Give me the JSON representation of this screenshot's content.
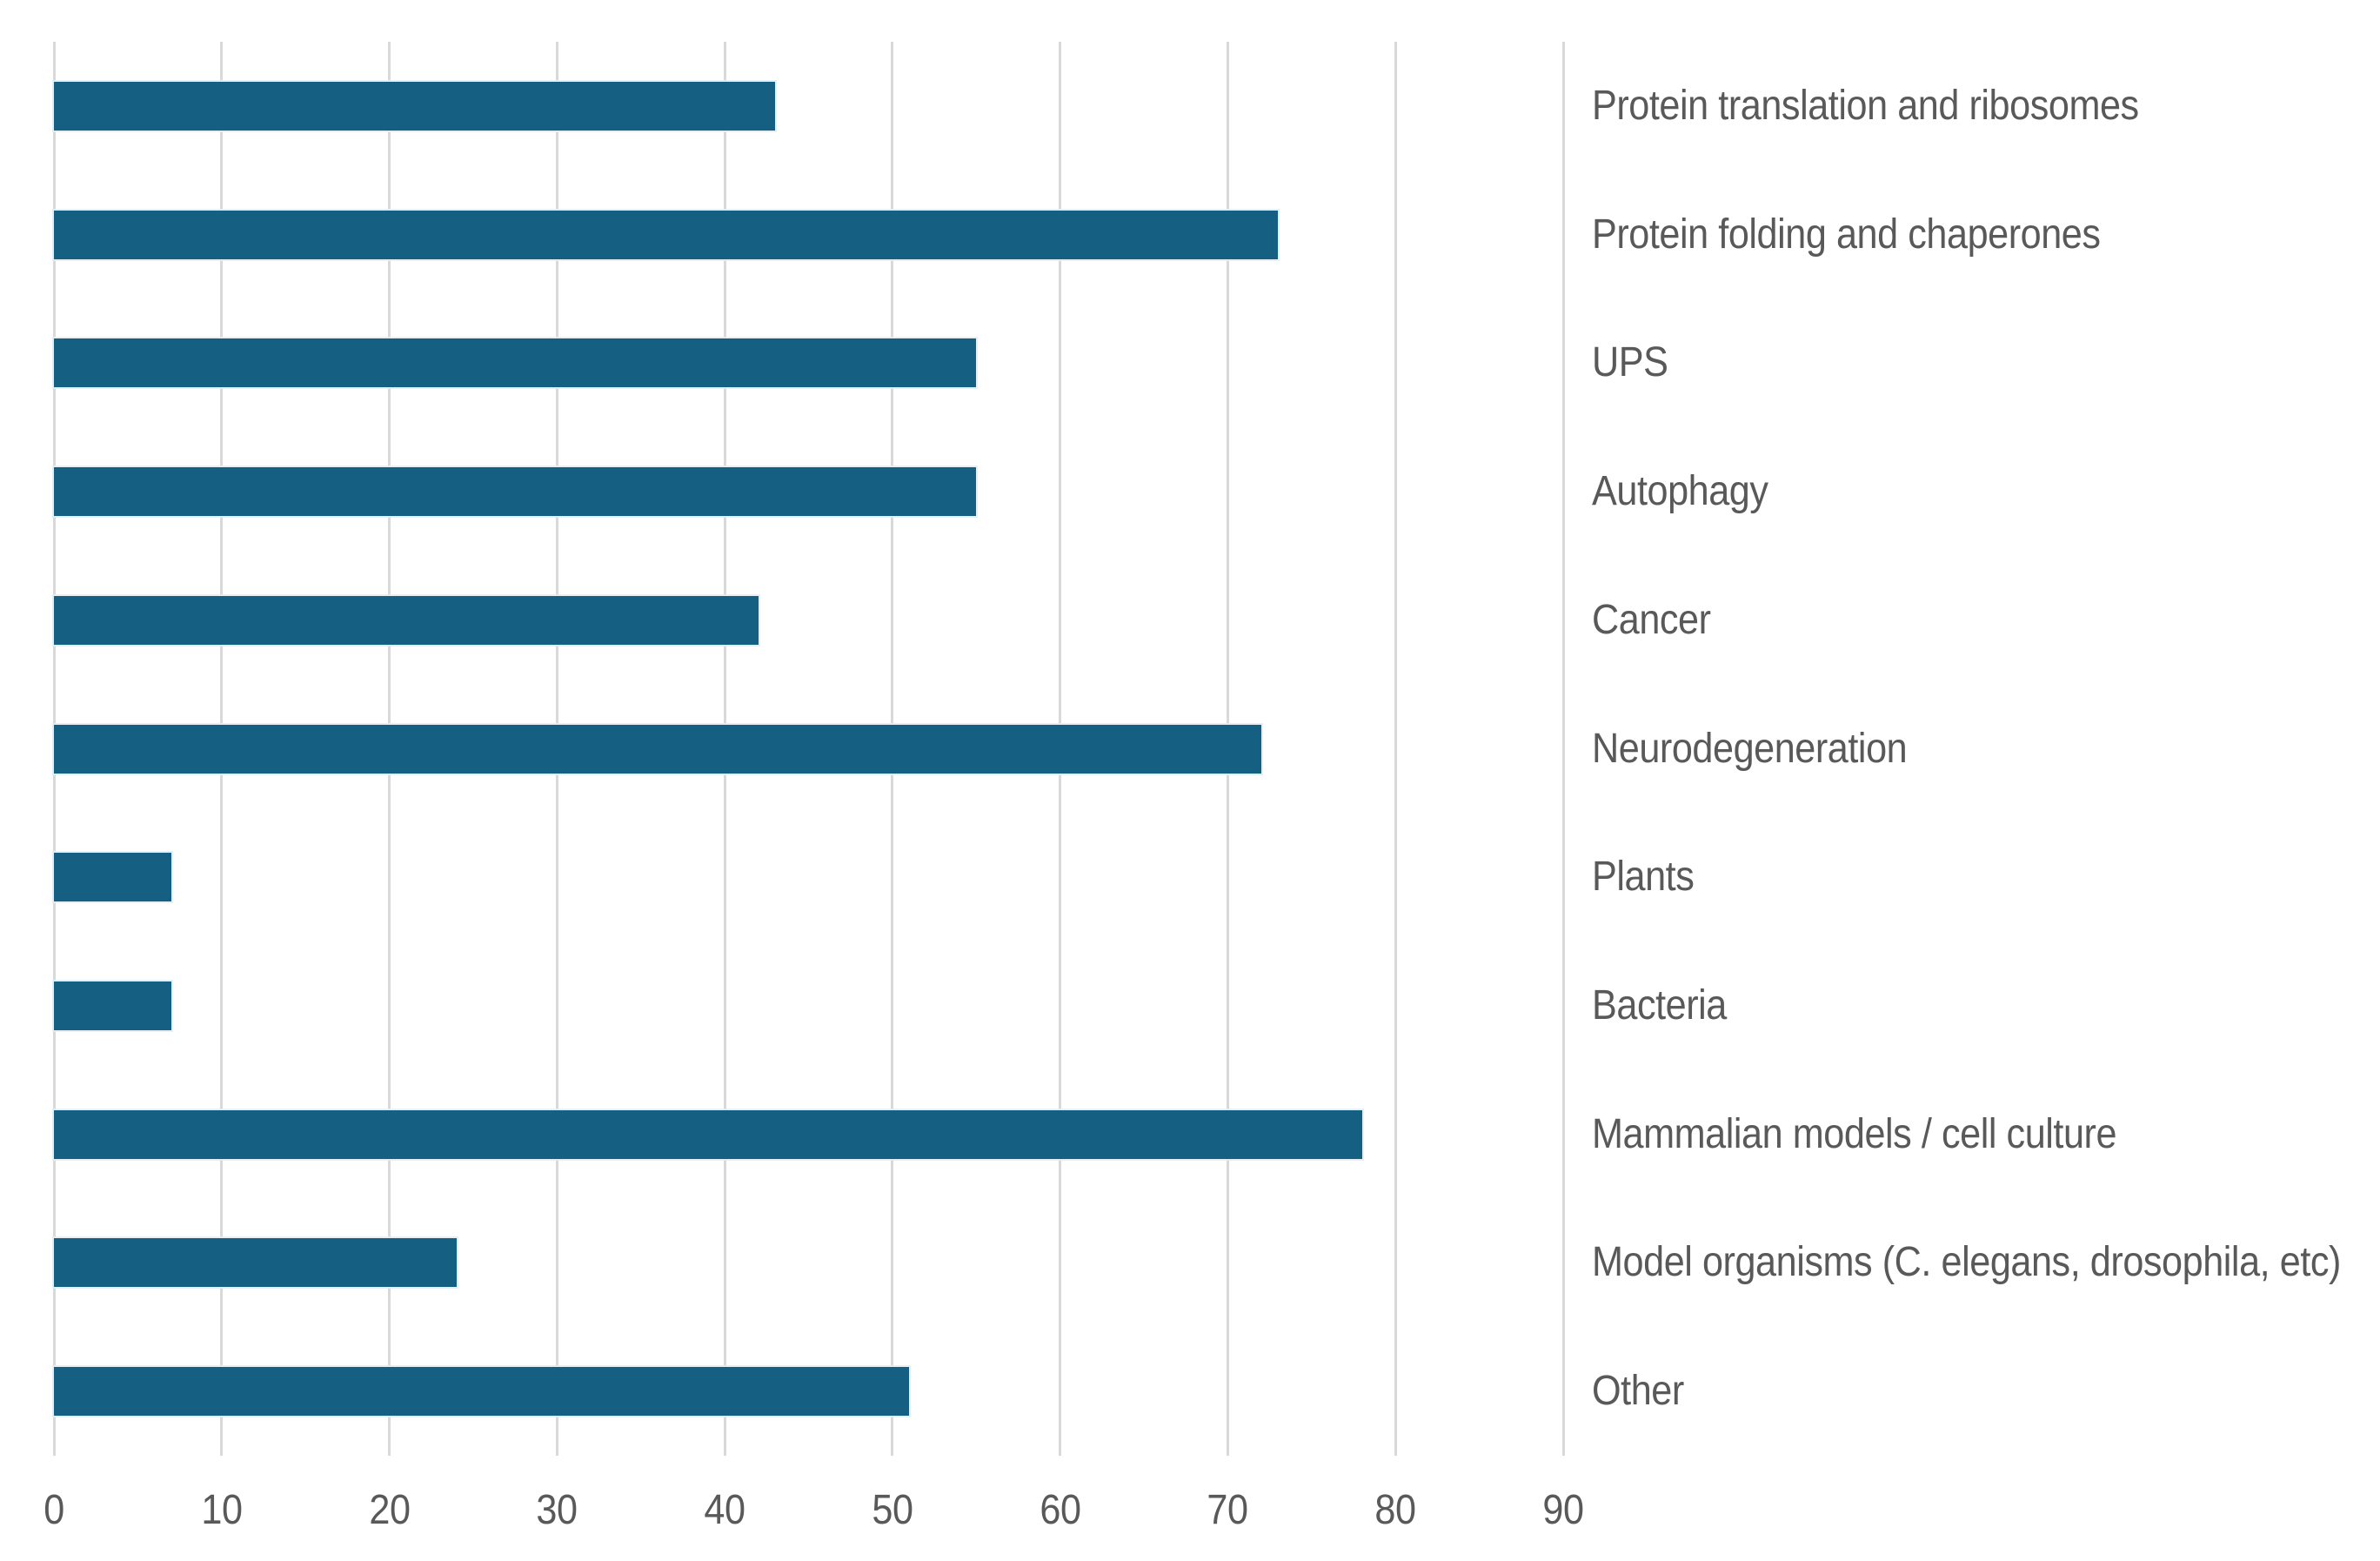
{
  "chart_data": {
    "type": "bar",
    "orientation": "horizontal",
    "title": "",
    "xlabel": "",
    "ylabel": "",
    "categories": [
      "Protein translation and ribosomes",
      "Protein folding and chaperones",
      "UPS",
      "Autophagy",
      "Cancer",
      "Neurodegeneration",
      "Plants",
      "Bacteria",
      "Mammalian models / cell culture",
      "Model organisms (C. elegans, drosophila, etc)",
      "Other"
    ],
    "values": [
      43,
      73,
      55,
      55,
      42,
      72,
      7,
      7,
      78,
      24,
      51
    ],
    "xlim": [
      0,
      90
    ],
    "x_ticks": [
      0,
      10,
      20,
      30,
      40,
      50,
      60,
      70,
      80,
      90
    ],
    "grid": "vertical-gridlines-only",
    "legend": "none",
    "bar_color": "#156082",
    "gridline_color": "#d9d9d9",
    "text_color": "#595959",
    "background_color": "#ffffff"
  }
}
